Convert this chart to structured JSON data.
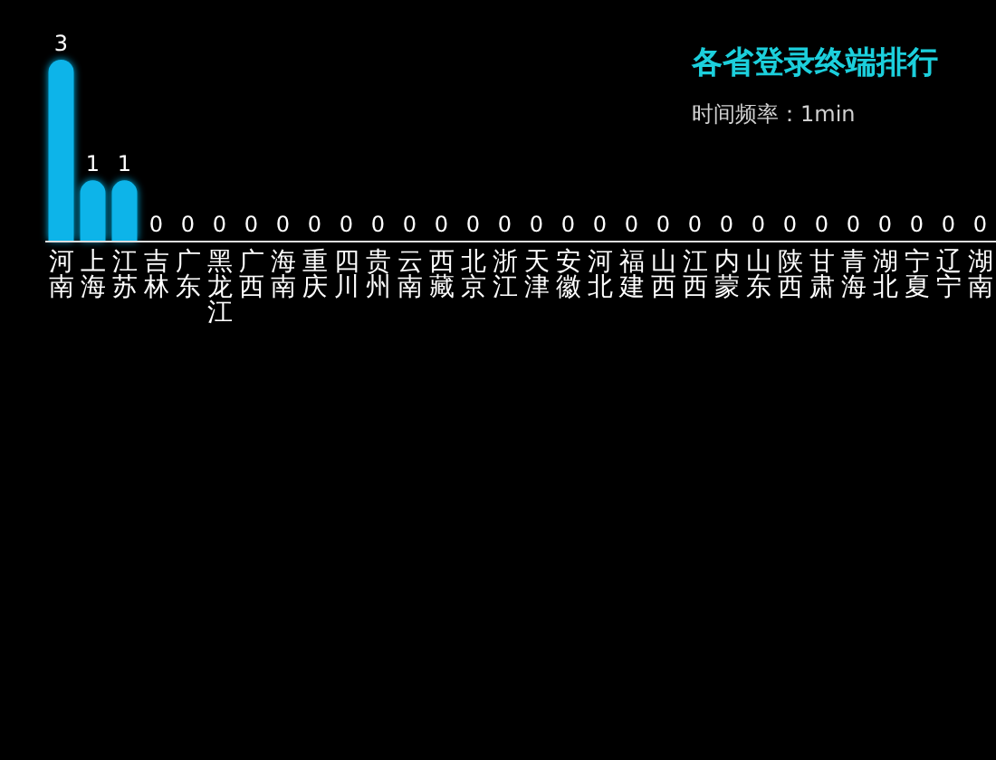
{
  "chart_data": {
    "type": "bar",
    "title": "各省登录终端排行",
    "subtitle": "时间频率：1min",
    "data_labels": true,
    "categories": [
      "河南",
      "上海",
      "江苏",
      "吉林",
      "广东",
      "黑龙江",
      "广西",
      "海南",
      "重庆",
      "四川",
      "贵州",
      "云南",
      "西藏",
      "北京",
      "浙江",
      "天津",
      "安徽",
      "河北",
      "福建",
      "山西",
      "江西",
      "内蒙",
      "山东",
      "陕西",
      "甘肃",
      "青海",
      "湖北",
      "宁夏",
      "辽宁",
      "湖南"
    ],
    "series": [
      {
        "color": "#0db4e9",
        "values": [
          3,
          1,
          1,
          0,
          0,
          0,
          0,
          0,
          0,
          0,
          0,
          0,
          0,
          0,
          0,
          0,
          0,
          0,
          0,
          0,
          0,
          0,
          0,
          0,
          0,
          0,
          0,
          0,
          0,
          0
        ]
      }
    ]
  }
}
